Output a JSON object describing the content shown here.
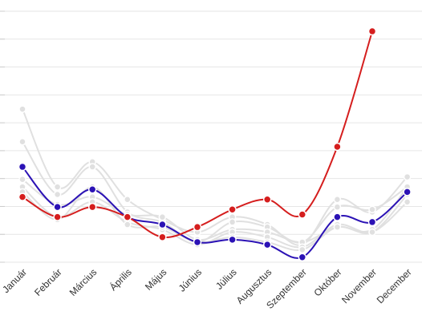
{
  "chart_data": {
    "type": "line",
    "categories": [
      "Január",
      "Február",
      "Március",
      "Április",
      "Május",
      "Június",
      "Július",
      "Augusztus",
      "Szeptember",
      "Október",
      "November",
      "December"
    ],
    "ylim": [
      0,
      100
    ],
    "grid": true,
    "legend": "none",
    "series": [
      {
        "color": "#e0e0e0",
        "highlighted": false,
        "values": [
          61,
          30,
          40,
          25,
          17,
          12,
          18,
          15,
          7,
          25,
          20,
          34
        ]
      },
      {
        "color": "#e0e0e0",
        "highlighted": false,
        "values": [
          48,
          27,
          38,
          20,
          16,
          8,
          16,
          14,
          8,
          22,
          21,
          30
        ]
      },
      {
        "color": "#e0e0e0",
        "highlighted": false,
        "values": [
          33,
          23,
          26,
          19,
          18,
          9,
          13,
          12,
          8,
          14,
          13,
          30
        ]
      },
      {
        "color": "#e0e0e0",
        "highlighted": false,
        "values": [
          30,
          18,
          24,
          16,
          13,
          7,
          12,
          10,
          6,
          15,
          12,
          24
        ]
      },
      {
        "color": "#e0e0e0",
        "highlighted": false,
        "values": [
          28,
          17,
          30,
          15,
          14,
          8,
          10,
          8,
          5,
          14,
          12,
          27
        ]
      },
      {
        "color": "#2b12b5",
        "highlighted": true,
        "values": [
          38,
          22,
          29,
          18,
          15,
          8,
          9,
          7,
          2,
          18,
          16,
          28
        ]
      },
      {
        "color": "#d51e1e",
        "highlighted": true,
        "values": [
          26,
          18,
          22,
          18,
          10,
          14,
          21,
          25,
          19,
          46,
          92,
          null
        ]
      }
    ]
  }
}
